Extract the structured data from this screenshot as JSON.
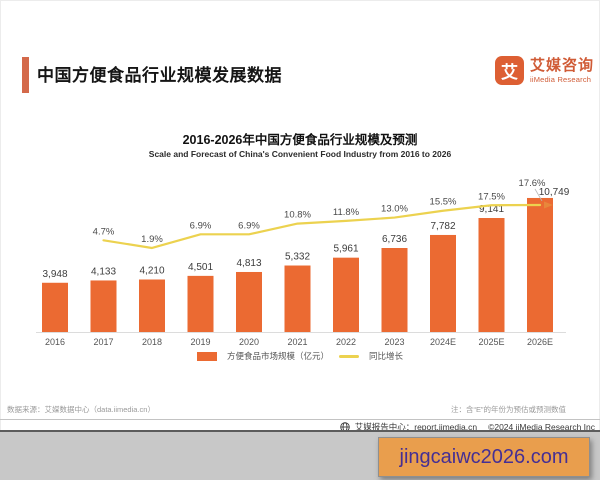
{
  "header": {
    "title": "中国方便食品行业规模发展数据",
    "accent_color": "#D4694A"
  },
  "logo": {
    "icon_text": "艾",
    "name_cn": "艾媒咨询",
    "name_en": "iiMedia Research",
    "brand_color": "#DD5F33"
  },
  "chart_data": {
    "type": "bar",
    "title": "2016-2026年中国方便食品行业规模及预测",
    "subtitle": "Scale and Forecast of China's Convenient Food Industry from 2016 to 2026",
    "categories": [
      "2016",
      "2017",
      "2018",
      "2019",
      "2020",
      "2021",
      "2022",
      "2023",
      "2024E",
      "2025E",
      "2026E"
    ],
    "series": [
      {
        "name": "方便食品市场规模（亿元）",
        "type": "bar",
        "color": "#EB6A32",
        "values": [
          3948,
          4133,
          4210,
          4501,
          4813,
          5332,
          5961,
          6736,
          7782,
          9141,
          10749
        ]
      },
      {
        "name": "同比增长",
        "type": "line",
        "unit": "%",
        "color": "#ECD24F",
        "values": [
          null,
          4.7,
          1.9,
          6.9,
          6.9,
          10.8,
          11.8,
          13.0,
          15.5,
          17.5,
          17.6
        ]
      }
    ],
    "xlabel": "",
    "ylabel": "",
    "grid": false,
    "legend_position": "bottom",
    "value_labels_shown": true
  },
  "footer": {
    "source": "数据来源：艾媒数据中心（data.iimedia.cn）",
    "note": "注：含“E”的年份为预估或预测数值"
  },
  "bottom_bar": {
    "report_center": "艾媒报告中心：report.iimedia.cn",
    "copyright": "©2024  iiMedia Research Inc"
  },
  "watermark": {
    "text": "jingcaiwc2026.com",
    "bg_color": "#E99E4D",
    "text_color": "#452F94"
  }
}
